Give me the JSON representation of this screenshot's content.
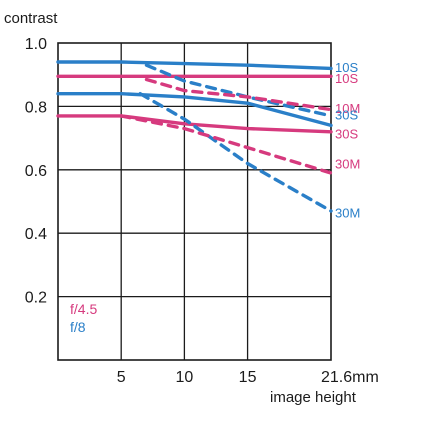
{
  "chart_data": {
    "type": "line",
    "ylabel": "contrast",
    "xlabel": "image height",
    "xlim": [
      0,
      21.6
    ],
    "ylim": [
      0,
      1.0
    ],
    "x_ticks": [
      {
        "value": 5,
        "label": "5"
      },
      {
        "value": 10,
        "label": "10"
      },
      {
        "value": 15,
        "label": "15"
      },
      {
        "value": 21.6,
        "label": "21.6mm"
      }
    ],
    "y_ticks": [
      {
        "value": 0.2,
        "label": "0.2"
      },
      {
        "value": 0.4,
        "label": "0.4"
      },
      {
        "value": 0.6,
        "label": "0.6"
      },
      {
        "value": 0.8,
        "label": "0.8"
      },
      {
        "value": 1.0,
        "label": "1.0"
      }
    ],
    "grid": true,
    "legend": {
      "placement": "bottom-left",
      "entries": [
        {
          "label": "f/4.5",
          "color": "#d63a7e"
        },
        {
          "label": "f/8",
          "color": "#2a7fc8"
        }
      ]
    },
    "series": [
      {
        "name": "10S",
        "aperture": "f/8",
        "color": "#2a7fc8",
        "dash": "solid",
        "x": [
          0,
          5,
          10,
          15,
          21.6
        ],
        "y": [
          0.94,
          0.94,
          0.935,
          0.93,
          0.92
        ]
      },
      {
        "name": "10S",
        "aperture": "f/4.5",
        "color": "#d63a7e",
        "dash": "solid",
        "x": [
          0,
          5,
          10,
          15,
          21.6
        ],
        "y": [
          0.895,
          0.895,
          0.895,
          0.895,
          0.895
        ]
      },
      {
        "name": "10M",
        "aperture": "f/8",
        "color": "#2a7fc8",
        "dash": "dashed",
        "x": [
          7,
          10,
          15,
          21.6
        ],
        "y": [
          0.93,
          0.88,
          0.83,
          0.77
        ]
      },
      {
        "name": "10M",
        "aperture": "f/4.5",
        "color": "#d63a7e",
        "dash": "dashed",
        "x": [
          7,
          10,
          15,
          21.6
        ],
        "y": [
          0.885,
          0.85,
          0.83,
          0.79
        ]
      },
      {
        "name": "30S",
        "aperture": "f/8",
        "color": "#2a7fc8",
        "dash": "solid",
        "x": [
          0,
          5,
          10,
          15,
          21.6
        ],
        "y": [
          0.84,
          0.84,
          0.83,
          0.81,
          0.74
        ]
      },
      {
        "name": "30S",
        "aperture": "f/4.5",
        "color": "#d63a7e",
        "dash": "solid",
        "x": [
          0,
          5,
          10,
          15,
          21.6
        ],
        "y": [
          0.77,
          0.77,
          0.745,
          0.73,
          0.72
        ]
      },
      {
        "name": "30M",
        "aperture": "f/8",
        "color": "#2a7fc8",
        "dash": "dashed",
        "x": [
          6.5,
          10,
          15,
          21.6
        ],
        "y": [
          0.84,
          0.76,
          0.62,
          0.47
        ]
      },
      {
        "name": "30M",
        "aperture": "f/4.5",
        "color": "#d63a7e",
        "dash": "dashed",
        "x": [
          5,
          10,
          15,
          21.6
        ],
        "y": [
          0.77,
          0.73,
          0.67,
          0.59
        ]
      }
    ],
    "end_labels": [
      {
        "text": "10S",
        "color": "#2a7fc8",
        "y": 0.925
      },
      {
        "text": "10S",
        "color": "#d63a7e",
        "y": 0.89
      },
      {
        "text": "10M",
        "color": "#d63a7e",
        "y": 0.795
      },
      {
        "text": "30S",
        "color": "#2a7fc8",
        "y": 0.775
      },
      {
        "text": "30S",
        "color": "#d63a7e",
        "y": 0.715
      },
      {
        "text": "30M",
        "color": "#d63a7e",
        "y": 0.62
      },
      {
        "text": "30M",
        "color": "#2a7fc8",
        "y": 0.465
      }
    ]
  }
}
